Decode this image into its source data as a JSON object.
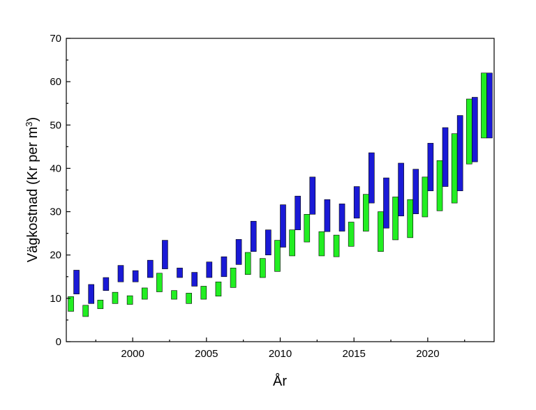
{
  "chart_data": {
    "type": "floating-bar",
    "title": "",
    "xlabel": "År",
    "ylabel": "Vägkostnad (Kr per m³)",
    "ylabel_parts": {
      "before": "Vägkostnad (Kr per m",
      "sup": "3",
      "after": ")"
    },
    "xlim": [
      1995.5,
      2024.5
    ],
    "ylim": [
      0,
      70
    ],
    "xticks": [
      2000,
      2005,
      2010,
      2015,
      2020
    ],
    "yticks": [
      0,
      10,
      20,
      30,
      40,
      50,
      60,
      70
    ],
    "grid": false,
    "legend": "none",
    "x": [
      1996,
      1997,
      1998,
      1999,
      2000,
      2001,
      2002,
      2003,
      2004,
      2005,
      2006,
      2007,
      2008,
      2009,
      2010,
      2011,
      2012,
      2013,
      2014,
      2015,
      2016,
      2017,
      2018,
      2019,
      2020,
      2021,
      2022,
      2023,
      2024
    ],
    "series": [
      {
        "color": "#22ee22",
        "low": [
          7.0,
          5.8,
          7.6,
          8.8,
          8.6,
          9.8,
          11.5,
          9.8,
          8.8,
          9.8,
          10.5,
          12.5,
          15.5,
          14.8,
          16.2,
          19.8,
          23.0,
          19.8,
          19.6,
          22.0,
          25.5,
          20.8,
          23.5,
          24.0,
          28.8,
          30.2,
          32.0,
          41.0,
          47.0
        ],
        "high": [
          10.4,
          8.4,
          9.6,
          11.4,
          10.6,
          12.4,
          15.8,
          11.8,
          11.2,
          12.8,
          13.8,
          17.0,
          20.6,
          19.2,
          23.4,
          25.8,
          29.4,
          25.4,
          24.6,
          27.6,
          34.0,
          30.0,
          33.4,
          32.8,
          38.0,
          41.8,
          48.0,
          56.0,
          62.0
        ]
      },
      {
        "color": "#1a1ad6",
        "low": [
          11.0,
          8.8,
          11.8,
          13.8,
          13.8,
          14.8,
          16.8,
          14.8,
          12.8,
          14.8,
          15.0,
          17.8,
          20.8,
          20.0,
          21.8,
          25.8,
          29.4,
          25.4,
          25.5,
          28.5,
          32.0,
          26.2,
          29.0,
          29.5,
          34.8,
          35.8,
          34.8,
          41.5,
          47.0
        ],
        "high": [
          16.5,
          13.2,
          14.8,
          17.6,
          16.4,
          18.8,
          23.4,
          17.0,
          16.0,
          18.4,
          19.6,
          23.6,
          27.8,
          25.8,
          31.6,
          33.6,
          38.0,
          32.8,
          31.8,
          35.8,
          43.6,
          37.8,
          41.2,
          39.8,
          45.8,
          49.4,
          52.2,
          56.4,
          62.0
        ]
      }
    ]
  }
}
